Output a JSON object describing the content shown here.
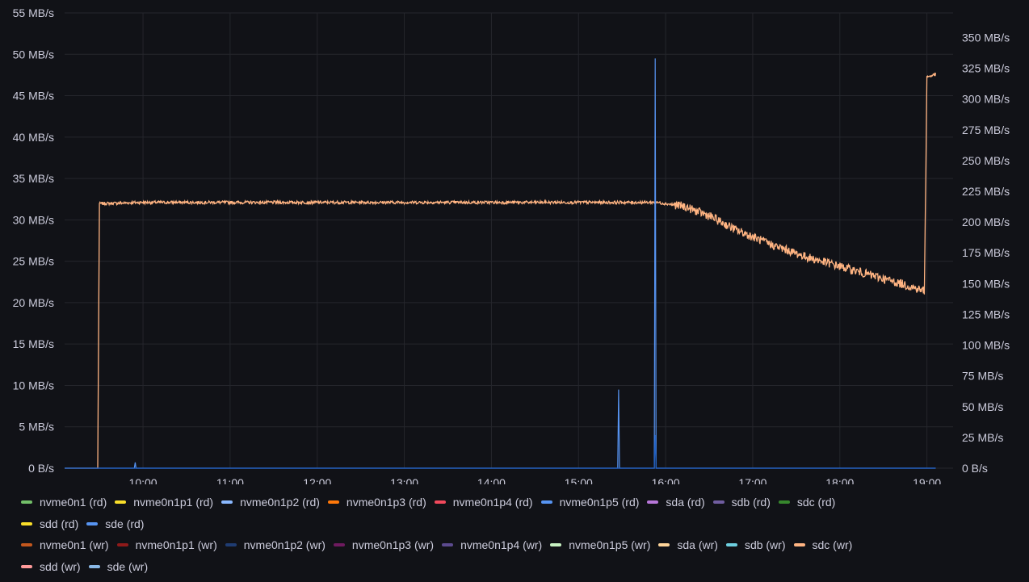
{
  "chart_data": {
    "type": "line",
    "title": "",
    "x_ticks": [
      "10:00",
      "11:00",
      "12:00",
      "13:00",
      "14:00",
      "15:00",
      "16:00",
      "17:00",
      "18:00",
      "19:00"
    ],
    "y_left": {
      "ticks": [
        "0 B/s",
        "5 MB/s",
        "10 MB/s",
        "15 MB/s",
        "20 MB/s",
        "25 MB/s",
        "30 MB/s",
        "35 MB/s",
        "40 MB/s",
        "45 MB/s",
        "50 MB/s",
        "55 MB/s"
      ],
      "range": [
        0,
        55
      ]
    },
    "y_right": {
      "ticks": [
        "0 B/s",
        "25 MB/s",
        "50 MB/s",
        "75 MB/s",
        "100 MB/s",
        "125 MB/s",
        "150 MB/s",
        "175 MB/s",
        "200 MB/s",
        "225 MB/s",
        "250 MB/s",
        "275 MB/s",
        "300 MB/s",
        "325 MB/s",
        "350 MB/s"
      ],
      "range": [
        0,
        370
      ]
    },
    "x_range_hours": [
      9.1,
      19.3
    ],
    "series": [
      {
        "name": "sdc (wr)",
        "axis": "right",
        "color": "#ffb482",
        "points": [
          [
            9.1,
            0
          ],
          [
            9.48,
            0
          ],
          [
            9.5,
            215
          ],
          [
            10.0,
            216
          ],
          [
            11.0,
            216
          ],
          [
            12.0,
            216
          ],
          [
            13.0,
            216
          ],
          [
            14.0,
            216
          ],
          [
            15.0,
            216
          ],
          [
            15.9,
            216
          ],
          [
            16.2,
            213
          ],
          [
            16.5,
            205
          ],
          [
            16.8,
            194
          ],
          [
            17.2,
            182
          ],
          [
            17.6,
            172
          ],
          [
            18.0,
            164
          ],
          [
            18.4,
            156
          ],
          [
            18.7,
            150
          ],
          [
            18.97,
            144
          ],
          [
            19.0,
            318
          ],
          [
            19.1,
            320
          ]
        ]
      },
      {
        "name": "sde (rd)",
        "axis": "left",
        "color": "#5794f2",
        "points": [
          [
            9.1,
            0
          ],
          [
            9.9,
            0
          ],
          [
            9.91,
            0.7
          ],
          [
            9.92,
            0
          ],
          [
            15.45,
            0
          ],
          [
            15.46,
            9.5
          ],
          [
            15.47,
            0
          ],
          [
            15.87,
            0
          ],
          [
            15.88,
            49.5
          ],
          [
            15.89,
            0
          ],
          [
            19.1,
            0
          ]
        ]
      },
      {
        "name": "nvme0n1p2 (wr)",
        "axis": "left",
        "color": "#1f60c4",
        "points": [
          [
            9.1,
            0
          ],
          [
            15.87,
            0
          ],
          [
            15.88,
            4
          ],
          [
            15.89,
            0
          ],
          [
            19.1,
            0
          ]
        ]
      }
    ],
    "legend": [
      [
        {
          "label": "nvme0n1 (rd)",
          "color": "#73bf69"
        },
        {
          "label": "nvme0n1p1 (rd)",
          "color": "#fade2a"
        },
        {
          "label": "nvme0n1p2 (rd)",
          "color": "#8ab8ff"
        },
        {
          "label": "nvme0n1p3 (rd)",
          "color": "#ff780a"
        },
        {
          "label": "nvme0n1p4 (rd)",
          "color": "#f2495c"
        },
        {
          "label": "nvme0n1p5 (rd)",
          "color": "#5794f2"
        },
        {
          "label": "sda (rd)",
          "color": "#b877d9"
        },
        {
          "label": "sdb (rd)",
          "color": "#705da0"
        },
        {
          "label": "sdc (rd)",
          "color": "#37872d"
        }
      ],
      [
        {
          "label": "sdd (rd)",
          "color": "#fade2a"
        },
        {
          "label": "sde (rd)",
          "color": "#5794f2"
        }
      ],
      [
        {
          "label": "nvme0n1 (wr)",
          "color": "#c4571d"
        },
        {
          "label": "nvme0n1p1 (wr)",
          "color": "#8f1a1a"
        },
        {
          "label": "nvme0n1p2 (wr)",
          "color": "#1f3c72"
        },
        {
          "label": "nvme0n1p3 (wr)",
          "color": "#6e1a5f"
        },
        {
          "label": "nvme0n1p4 (wr)",
          "color": "#5c4a8f"
        },
        {
          "label": "nvme0n1p5 (wr)",
          "color": "#c8f2c2"
        },
        {
          "label": "sda (wr)",
          "color": "#ffd59a"
        },
        {
          "label": "sdb (wr)",
          "color": "#6ed0e0"
        },
        {
          "label": "sdc (wr)",
          "color": "#ffb482"
        }
      ],
      [
        {
          "label": "sdd (wr)",
          "color": "#ff9a9a"
        },
        {
          "label": "sde (wr)",
          "color": "#8ab8e6"
        }
      ]
    ]
  }
}
